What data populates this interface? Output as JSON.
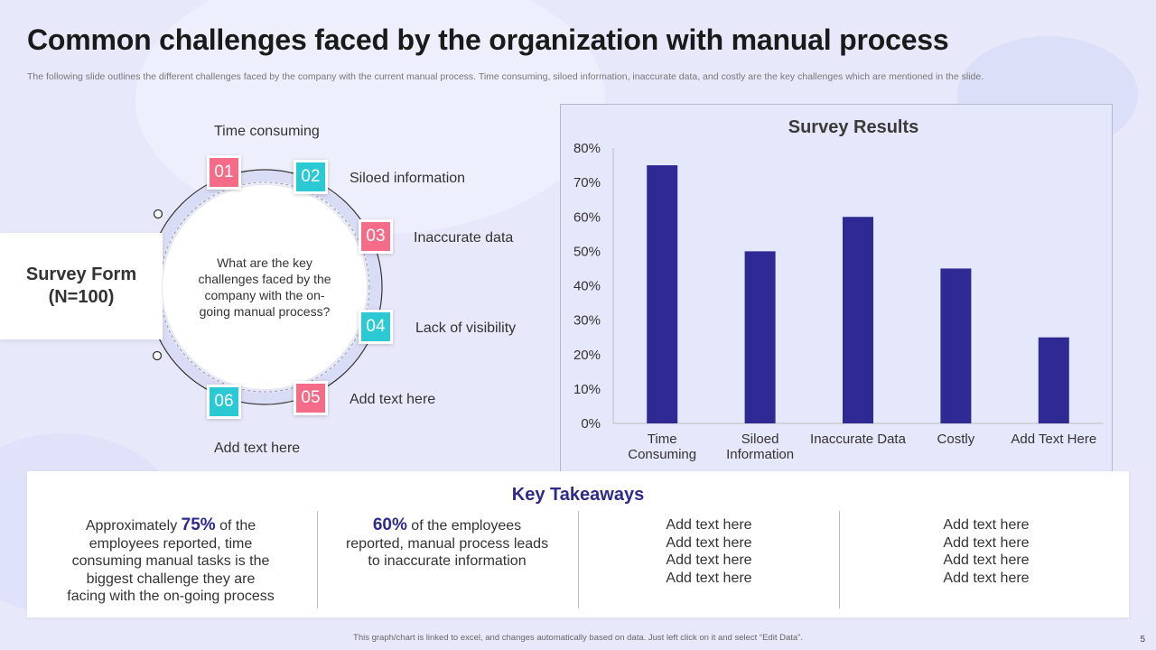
{
  "slide": {
    "title": "Common challenges faced by the organization with manual process",
    "subtitle": "The following slide outlines the different challenges faced by the company with the current manual process. Time consuming, siloed information, inaccurate data, and costly are the key challenges which are mentioned in the slide.",
    "footer_note": "This graph/chart is linked to excel, and changes automatically based on data. Just left click on it and select “Edit Data”.",
    "page_number": "5"
  },
  "survey_form": {
    "title": "Survey Form",
    "count": "(N=100)"
  },
  "diagram": {
    "question": "What are the key challenges faced by the company with the on-going manual process?",
    "items": [
      {
        "number": "01",
        "label": "Time consuming",
        "color": "#f56c89"
      },
      {
        "number": "02",
        "label": "Siloed information",
        "color": "#2bc9d3"
      },
      {
        "number": "03",
        "label": "Inaccurate  data",
        "color": "#f56c89"
      },
      {
        "number": "04",
        "label": "Lack of visibility",
        "color": "#2bc9d3"
      },
      {
        "number": "05",
        "label": "Add text here",
        "color": "#f56c89"
      },
      {
        "number": "06",
        "label": "Add text here",
        "color": "#2bc9d3"
      }
    ]
  },
  "chart_data": {
    "type": "bar",
    "title": "Survey Results",
    "categories": [
      [
        "Time",
        "Consuming"
      ],
      [
        "Siloed",
        "Information"
      ],
      [
        "Inaccurate Data"
      ],
      [
        "Costly"
      ],
      [
        "Add Text Here"
      ]
    ],
    "values": [
      0.75,
      0.5,
      0.6,
      0.45,
      0.25
    ],
    "ylim": [
      0,
      0.8
    ],
    "yticks": [
      "0%",
      "10%",
      "20%",
      "30%",
      "40%",
      "50%",
      "60%",
      "70%",
      "80%"
    ],
    "xlabel": "",
    "ylabel": "",
    "bar_color": "#2f2a93",
    "grid": false
  },
  "takeaways": {
    "title": "Key Takeaways",
    "col1": {
      "prefix": "Approximately ",
      "highlight": "75%",
      "line1_rest": " of the",
      "lines": [
        "employees reported, time",
        "consuming manual tasks is the",
        "biggest challenge they are",
        "facing with the on-going process"
      ]
    },
    "col2": {
      "highlight": "60%",
      "line1_rest": " of the employees",
      "lines": [
        "reported, manual process leads",
        "to inaccurate information"
      ]
    },
    "col3": {
      "lines": [
        "Add text here",
        "Add text here",
        "Add text here",
        "Add text here"
      ]
    },
    "col4": {
      "lines": [
        "Add text here",
        "Add text here",
        "Add text here",
        "Add text here"
      ]
    }
  }
}
